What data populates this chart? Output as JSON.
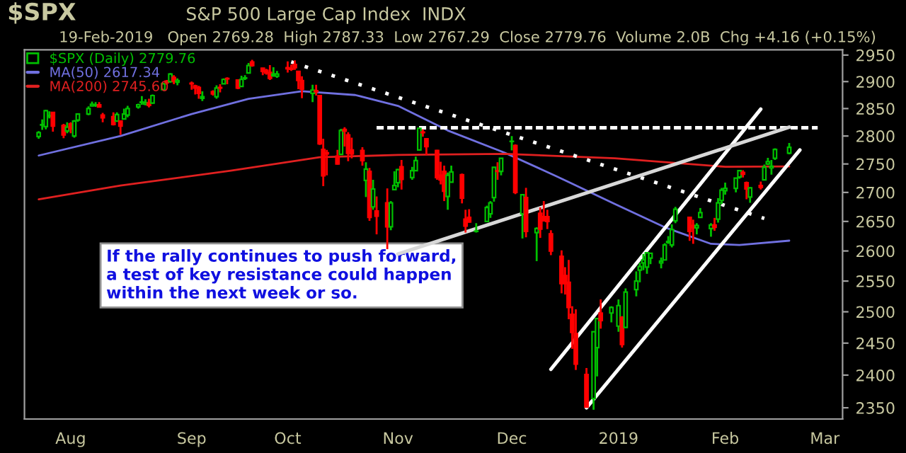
{
  "chart_data": {
    "type": "candlestick",
    "title": "$SPX",
    "subtitle": "S&P 500 Large Cap Index  INDX",
    "annotations": [
      "19-Feb-2019   Open 2769.28  High 2787.33  Low 2767.29  Close 2779.76  Volume 2.0B  Chg +4.16 (+0.15%)",
      "If the rally continues to push forward, a test of key resistance could happen within the next week or so."
    ],
    "log": true,
    "legend": "top left",
    "grid": false,
    "xlim": [
      "2018-07-19",
      "2019-03-06"
    ],
    "xticks": [
      {
        "value": "2018-08-01",
        "label": "Aug"
      },
      {
        "value": "2018-09-04",
        "label": "Sep"
      },
      {
        "value": "2018-10-01",
        "label": "Oct"
      },
      {
        "value": "2018-11-01",
        "label": "Nov"
      },
      {
        "value": "2018-12-03",
        "label": "Dec"
      },
      {
        "value": "2019-01-02",
        "label": "2019"
      },
      {
        "value": "2019-02-01",
        "label": "Feb"
      },
      {
        "value": "2019-03-01",
        "label": "Mar"
      }
    ],
    "ylim": [
      2333,
      2960
    ],
    "yticks": [
      2350,
      2400,
      2450,
      2500,
      2550,
      2600,
      2650,
      2700,
      2750,
      2800,
      2850,
      2900,
      2950
    ],
    "series": [
      {
        "type": "candlestick",
        "name": "$SPX (Daily) 2779.76",
        "colors": [
          "#00c000",
          "#00c000",
          "#00c000",
          "#00c000",
          "#ff0000",
          "#ff0000",
          "#00c000",
          "#ff0000",
          "#00c000",
          "#00c000",
          "#00c000",
          "#00c000",
          "#00c000",
          "#ff0000",
          "#ff0000",
          "#ff0000",
          "#00c000",
          "#ff0000",
          "#00c000",
          "#00c000",
          "#00c000",
          "#00c000",
          "#00c000",
          "#ff0000",
          "#00c000",
          "#00c000",
          "#ff0000",
          "#00c000",
          "#ff0000",
          "#00c000",
          "#ff0000",
          "#ff0000",
          "#ff0000",
          "#00c000",
          "#ff0000",
          "#00c000",
          "#ff0000",
          "#00c000",
          "#ff0000",
          "#ff0000",
          "#00c000",
          "#00c000",
          "#00c000",
          "#ff0000",
          "#ff0000",
          "#ff0000",
          "#ff0000",
          "#00c000",
          "#00c000",
          "#ff0000",
          "#ff0000",
          "#ff0000",
          "#ff0000",
          "#ff0000",
          "#00c000",
          "#ff0000",
          "#ff0000",
          "#ff0000",
          "#ff0000",
          "#ff0000",
          "#00c000",
          "#ff0000",
          "#ff0000",
          "#ff0000",
          "#ff0000",
          "#00c000",
          "#ff0000",
          "#00c000",
          "#ff0000",
          "#ff0000",
          "#00c000",
          "#00c000",
          "#00c000",
          "#ff0000",
          "#00c000",
          "#00c000",
          "#00c000",
          "#ff0000",
          "#ff0000",
          "#ff0000",
          "#ff0000",
          "#ff0000",
          "#00c000",
          "#00c000",
          "#ff0000",
          "#ff0000",
          "#ff0000",
          "#00c000",
          "#00c000",
          "#00c000",
          "#00c000",
          "#ff0000",
          "#00c000",
          "#00c000",
          "#ff0000",
          "#00c000",
          "#ff0000",
          "#00c000",
          "#ff0000",
          "#ff0000",
          "#ff0000",
          "#ff0000",
          "#ff0000",
          "#ff0000",
          "#ff0000",
          "#ff0000",
          "#ff0000",
          "#ff0000",
          "#00c000",
          "#00c000",
          "#ff0000",
          "#00c000",
          "#00c000",
          "#ff0000",
          "#00c000",
          "#00c000",
          "#00c000",
          "#00c000",
          "#00c000",
          "#00c000",
          "#00c000",
          "#00c000",
          "#00c000",
          "#00c000",
          "#00c000",
          "#ff0000",
          "#ff0000",
          "#00c000",
          "#00c000",
          "#00c000",
          "#ff0000",
          "#00c000",
          "#00c000",
          "#00c000",
          "#00c000",
          "#00c000",
          "#ff0000",
          "#ff0000",
          "#00c000",
          "#ff0000",
          "#00c000",
          "#00c000",
          "#00c000",
          "#00c000",
          "#00c000"
        ],
        "x": [
          "2018-07-23",
          "2018-07-24",
          "2018-07-25",
          "2018-07-26",
          "2018-07-27",
          "2018-07-30",
          "2018-07-31",
          "2018-08-01",
          "2018-08-02",
          "2018-08-03",
          "2018-08-06",
          "2018-08-07",
          "2018-08-08",
          "2018-08-09",
          "2018-08-10",
          "2018-08-13",
          "2018-08-14",
          "2018-08-15",
          "2018-08-16",
          "2018-08-17",
          "2018-08-20",
          "2018-08-21",
          "2018-08-22",
          "2018-08-23",
          "2018-08-24",
          "2018-08-27",
          "2018-08-28",
          "2018-08-29",
          "2018-08-30",
          "2018-08-31",
          "2018-09-04",
          "2018-09-05",
          "2018-09-06",
          "2018-09-07",
          "2018-09-10",
          "2018-09-11",
          "2018-09-12",
          "2018-09-13",
          "2018-09-14",
          "2018-09-17",
          "2018-09-18",
          "2018-09-19",
          "2018-09-20",
          "2018-09-21",
          "2018-09-24",
          "2018-09-25",
          "2018-09-26",
          "2018-09-27",
          "2018-09-28",
          "2018-10-01",
          "2018-10-02",
          "2018-10-03",
          "2018-10-04",
          "2018-10-05",
          "2018-10-08",
          "2018-10-09",
          "2018-10-10",
          "2018-10-11",
          "2018-10-12",
          "2018-10-15",
          "2018-10-16",
          "2018-10-17",
          "2018-10-18",
          "2018-10-19",
          "2018-10-22",
          "2018-10-23",
          "2018-10-24",
          "2018-10-25",
          "2018-10-26",
          "2018-10-29",
          "2018-10-30",
          "2018-10-31",
          "2018-11-01",
          "2018-11-02",
          "2018-11-05",
          "2018-11-06",
          "2018-11-07",
          "2018-11-08",
          "2018-11-09",
          "2018-11-12",
          "2018-11-13",
          "2018-11-14",
          "2018-11-15",
          "2018-11-16",
          "2018-11-19",
          "2018-11-20",
          "2018-11-21",
          "2018-11-23",
          "2018-11-26",
          "2018-11-27",
          "2018-11-28",
          "2018-11-29",
          "2018-11-30",
          "2018-12-03",
          "2018-12-04",
          "2018-12-06",
          "2018-12-07",
          "2018-12-10",
          "2018-12-11",
          "2018-12-12",
          "2018-12-13",
          "2018-12-14",
          "2018-12-17",
          "2018-12-18",
          "2018-12-19",
          "2018-12-20",
          "2018-12-21",
          "2018-12-24",
          "2018-12-26",
          "2018-12-27",
          "2018-12-28",
          "2018-12-31",
          "2019-01-02",
          "2019-01-03",
          "2019-01-04",
          "2019-01-07",
          "2019-01-08",
          "2019-01-09",
          "2019-01-10",
          "2019-01-11",
          "2019-01-14",
          "2019-01-15",
          "2019-01-16",
          "2019-01-17",
          "2019-01-18",
          "2019-01-22",
          "2019-01-23",
          "2019-01-24",
          "2019-01-25",
          "2019-01-28",
          "2019-01-29",
          "2019-01-30",
          "2019-01-31",
          "2019-02-01",
          "2019-02-04",
          "2019-02-05",
          "2019-02-06",
          "2019-02-07",
          "2019-02-08",
          "2019-02-11",
          "2019-02-12",
          "2019-02-13",
          "2019-02-14",
          "2019-02-15",
          "2019-02-19"
        ],
        "ohlc": [
          [
            2799,
            2809,
            2795,
            2806
          ],
          [
            2820,
            2830,
            2811,
            2820
          ],
          [
            2817,
            2848,
            2812,
            2846
          ],
          [
            2836,
            2845,
            2832,
            2837
          ],
          [
            2843,
            2843,
            2808,
            2818
          ],
          [
            2819,
            2822,
            2796,
            2802
          ],
          [
            2809,
            2825,
            2805,
            2816
          ],
          [
            2822,
            2825,
            2805,
            2813
          ],
          [
            2800,
            2829,
            2797,
            2827
          ],
          [
            2829,
            2840,
            2826,
            2840
          ],
          [
            2840,
            2854,
            2838,
            2850
          ],
          [
            2855,
            2863,
            2854,
            2858
          ],
          [
            2856,
            2862,
            2853,
            2857
          ],
          [
            2857,
            2862,
            2852,
            2853
          ],
          [
            2838,
            2842,
            2825,
            2833
          ],
          [
            2835,
            2843,
            2819,
            2821
          ],
          [
            2827,
            2843,
            2826,
            2839
          ],
          [
            2827,
            2827,
            2802,
            2818
          ],
          [
            2831,
            2850,
            2831,
            2840
          ],
          [
            2838,
            2855,
            2834,
            2850
          ],
          [
            2853,
            2859,
            2850,
            2857
          ],
          [
            2861,
            2873,
            2857,
            2862
          ],
          [
            2858,
            2867,
            2856,
            2861
          ],
          [
            2860,
            2868,
            2852,
            2856
          ],
          [
            2860,
            2876,
            2859,
            2874
          ],
          [
            2885,
            2898,
            2885,
            2896
          ],
          [
            2901,
            2903,
            2894,
            2898
          ],
          [
            2900,
            2916,
            2898,
            2914
          ],
          [
            2908,
            2912,
            2895,
            2901
          ],
          [
            2899,
            2906,
            2893,
            2902
          ],
          [
            2897,
            2900,
            2885,
            2896
          ],
          [
            2892,
            2894,
            2876,
            2888
          ],
          [
            2889,
            2892,
            2868,
            2878
          ],
          [
            2869,
            2882,
            2864,
            2872
          ],
          [
            2881,
            2884,
            2874,
            2877
          ],
          [
            2872,
            2893,
            2868,
            2888
          ],
          [
            2889,
            2895,
            2880,
            2888
          ],
          [
            2896,
            2906,
            2895,
            2904
          ],
          [
            2906,
            2908,
            2895,
            2905
          ],
          [
            2903,
            2904,
            2886,
            2888
          ],
          [
            2891,
            2911,
            2890,
            2904
          ],
          [
            2906,
            2912,
            2903,
            2907
          ],
          [
            2916,
            2935,
            2916,
            2930
          ],
          [
            2937,
            2941,
            2928,
            2930
          ],
          [
            2925,
            2926,
            2912,
            2919
          ],
          [
            2921,
            2924,
            2913,
            2916
          ],
          [
            2917,
            2931,
            2903,
            2906
          ],
          [
            2911,
            2927,
            2909,
            2914
          ],
          [
            2910,
            2920,
            2907,
            2914
          ],
          [
            2926,
            2938,
            2917,
            2924
          ],
          [
            2924,
            2932,
            2920,
            2923
          ],
          [
            2932,
            2940,
            2922,
            2926
          ],
          [
            2919,
            2920,
            2886,
            2902
          ],
          [
            2902,
            2910,
            2869,
            2886
          ],
          [
            2878,
            2894,
            2862,
            2884
          ],
          [
            2883,
            2894,
            2874,
            2881
          ],
          [
            2874,
            2874,
            2784,
            2786
          ],
          [
            2776,
            2795,
            2711,
            2729
          ],
          [
            2770,
            2775,
            2730,
            2768
          ],
          [
            2764,
            2775,
            2749,
            2750
          ],
          [
            2767,
            2813,
            2767,
            2810
          ],
          [
            2812,
            2816,
            2781,
            2809
          ],
          [
            2802,
            2807,
            2755,
            2769
          ],
          [
            2775,
            2797,
            2760,
            2768
          ],
          [
            2774,
            2780,
            2747,
            2756
          ],
          [
            2721,
            2753,
            2692,
            2741
          ],
          [
            2737,
            2743,
            2651,
            2657
          ],
          [
            2675,
            2722,
            2670,
            2706
          ],
          [
            2668,
            2693,
            2628,
            2659
          ],
          [
            2682,
            2707,
            2603,
            2641
          ],
          [
            2641,
            2685,
            2635,
            2682
          ],
          [
            2705,
            2737,
            2705,
            2712
          ],
          [
            2717,
            2741,
            2709,
            2740
          ],
          [
            2745,
            2757,
            2705,
            2723
          ],
          [
            2726,
            2745,
            2722,
            2738
          ],
          [
            2738,
            2763,
            2738,
            2756
          ],
          [
            2775,
            2815,
            2775,
            2814
          ],
          [
            2807,
            2812,
            2799,
            2806
          ],
          [
            2795,
            2796,
            2766,
            2781
          ],
          [
            2774,
            2775,
            2722,
            2726
          ],
          [
            2730,
            2754,
            2714,
            2722
          ],
          [
            2737,
            2747,
            2685,
            2702
          ],
          [
            2693,
            2735,
            2670,
            2730
          ],
          [
            2718,
            2747,
            2718,
            2736
          ],
          [
            2731,
            2733,
            2681,
            2690
          ],
          [
            2654,
            2670,
            2631,
            2642
          ],
          [
            2657,
            2671,
            2648,
            2649
          ],
          [
            2633,
            2647,
            2631,
            2633
          ],
          [
            2650,
            2677,
            2650,
            2674
          ],
          [
            2663,
            2685,
            2656,
            2682
          ],
          [
            2691,
            2744,
            2684,
            2744
          ],
          [
            2737,
            2753,
            2722,
            2738
          ],
          [
            2737,
            2760,
            2730,
            2760
          ],
          [
            2790,
            2800,
            2774,
            2790
          ],
          [
            2783,
            2785,
            2697,
            2700
          ],
          [
            2663,
            2696,
            2621,
            2696
          ],
          [
            2691,
            2708,
            2623,
            2633
          ],
          [
            2631,
            2640,
            2583,
            2638
          ],
          [
            2664,
            2674,
            2622,
            2637
          ],
          [
            2658,
            2685,
            2650,
            2651
          ],
          [
            2658,
            2670,
            2637,
            2650
          ],
          [
            2629,
            2635,
            2593,
            2600
          ],
          [
            2591,
            2601,
            2530,
            2546
          ],
          [
            2559,
            2573,
            2528,
            2546
          ],
          [
            2548,
            2585,
            2488,
            2507
          ],
          [
            2496,
            2509,
            2441,
            2467
          ],
          [
            2465,
            2504,
            2408,
            2417
          ],
          [
            2401,
            2411,
            2351,
            2351
          ],
          [
            2364,
            2468,
            2347,
            2468
          ],
          [
            2443,
            2489,
            2398,
            2489
          ],
          [
            2498,
            2520,
            2473,
            2486
          ],
          [
            2498,
            2509,
            2483,
            2507
          ],
          [
            2477,
            2520,
            2468,
            2510
          ],
          [
            2491,
            2493,
            2443,
            2448
          ],
          [
            2475,
            2538,
            2475,
            2532
          ],
          [
            2536,
            2566,
            2525,
            2550
          ],
          [
            2568,
            2580,
            2548,
            2574
          ],
          [
            2580,
            2595,
            2568,
            2585
          ],
          [
            2573,
            2597,
            2562,
            2597
          ],
          [
            2588,
            2596,
            2578,
            2596
          ],
          [
            2580,
            2589,
            2571,
            2583
          ],
          [
            2585,
            2613,
            2585,
            2610
          ],
          [
            2614,
            2625,
            2612,
            2616
          ],
          [
            2610,
            2645,
            2606,
            2636
          ],
          [
            2651,
            2675,
            2647,
            2671
          ],
          [
            2657,
            2657,
            2617,
            2633
          ],
          [
            2643,
            2653,
            2612,
            2639
          ],
          [
            2639,
            2647,
            2628,
            2643
          ],
          [
            2657,
            2673,
            2657,
            2665
          ],
          [
            2638,
            2647,
            2624,
            2644
          ],
          [
            2644,
            2656,
            2634,
            2640
          ],
          [
            2654,
            2690,
            2648,
            2682
          ],
          [
            2686,
            2708,
            2680,
            2704
          ],
          [
            2703,
            2717,
            2696,
            2707
          ],
          [
            2707,
            2725,
            2700,
            2725
          ],
          [
            2727,
            2738,
            2724,
            2738
          ],
          [
            2735,
            2739,
            2726,
            2732
          ],
          [
            2717,
            2719,
            2688,
            2706
          ],
          [
            2692,
            2709,
            2682,
            2708
          ],
          [
            2712,
            2719,
            2705,
            2709
          ],
          [
            2722,
            2749,
            2722,
            2744
          ],
          [
            2750,
            2761,
            2748,
            2754
          ],
          [
            2743,
            2757,
            2731,
            2746
          ],
          [
            2760,
            2778,
            2757,
            2776
          ],
          [
            2769.28,
            2787.33,
            2767.29,
            2779.76
          ]
        ]
      },
      {
        "type": "line",
        "name": "MA(50) 2617.34",
        "color": "#7070e0",
        "x": [
          "2018-07-23",
          "2018-08-15",
          "2018-09-04",
          "2018-09-20",
          "2018-10-05",
          "2018-10-20",
          "2018-11-01",
          "2018-11-15",
          "2018-12-01",
          "2018-12-15",
          "2019-01-01",
          "2019-01-15",
          "2019-01-28",
          "2019-02-05",
          "2019-02-19"
        ],
        "values": [
          2765,
          2800,
          2840,
          2868,
          2882,
          2875,
          2855,
          2810,
          2770,
          2730,
          2680,
          2640,
          2612,
          2610,
          2617.34
        ]
      },
      {
        "type": "line",
        "name": "MA(200) 2745.60",
        "color": "#e02020",
        "x": [
          "2018-07-23",
          "2018-08-15",
          "2018-09-15",
          "2018-10-10",
          "2018-11-01",
          "2018-12-01",
          "2019-01-01",
          "2019-02-01",
          "2019-02-19"
        ],
        "values": [
          2688,
          2712,
          2738,
          2762,
          2766,
          2768,
          2760,
          2745,
          2745.6
        ]
      },
      {
        "type": "line",
        "color": "#ffffff",
        "line_style": "dotted",
        "x": [
          "2018-10-02",
          "2019-02-12"
        ],
        "values": [
          2937,
          2655
        ]
      },
      {
        "type": "line",
        "color": "#ffffff",
        "line_style": "dashed",
        "x": [
          "2018-10-26",
          "2019-02-27"
        ],
        "values": [
          2815,
          2815
        ]
      },
      {
        "type": "line",
        "color": "#ffffff",
        "line_style": "solid",
        "x": [
          "2018-12-14",
          "2019-02-11"
        ],
        "values": [
          2409,
          2849
        ]
      },
      {
        "type": "line",
        "color": "#ffffff",
        "line_style": "solid",
        "x": [
          "2018-12-24",
          "2019-02-22"
        ],
        "values": [
          2350,
          2775
        ]
      },
      {
        "type": "line",
        "color": "#d8d8d8",
        "line_style": "solid",
        "x": [
          "2018-11-01",
          "2019-02-19"
        ],
        "values": [
          2595,
          2816
        ]
      }
    ]
  }
}
